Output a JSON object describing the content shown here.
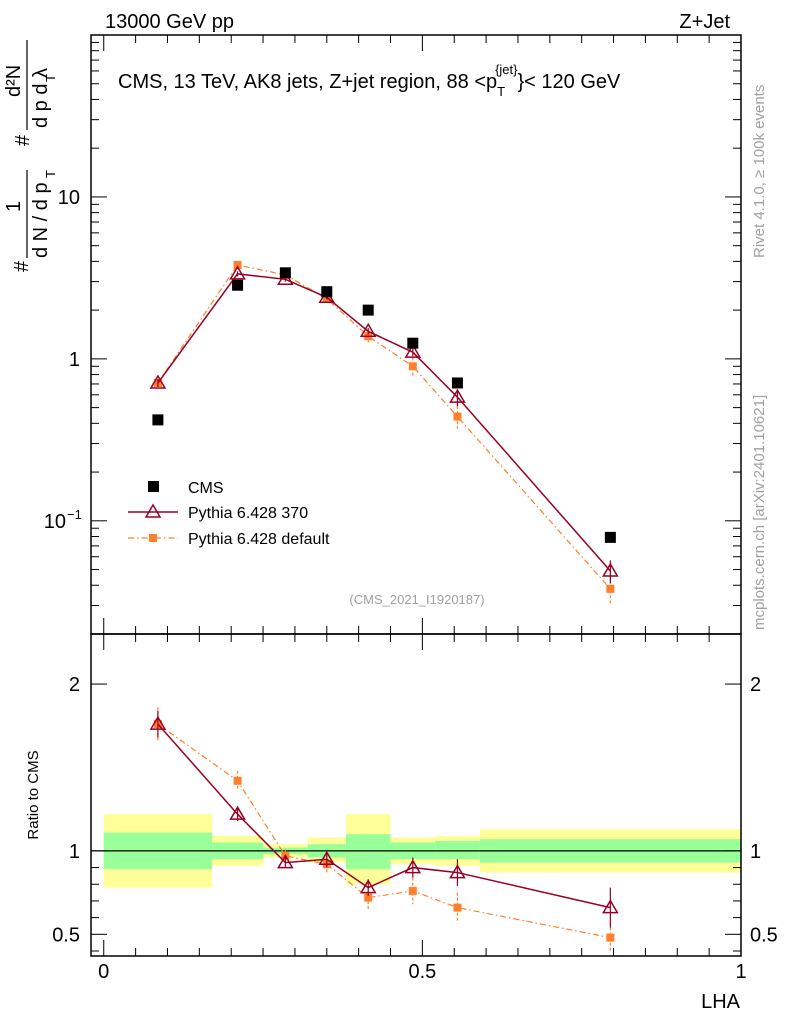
{
  "header": {
    "left": "13000 GeV pp",
    "right": "Z+Jet"
  },
  "plot_title": {
    "prefix": "CMS, 13 TeV, AK8 jets, Z+jet region, 88 <p",
    "sup": "{jet}",
    "sub": "T",
    "suffix": "}< 120 GeV"
  },
  "side_labels": {
    "rivet": "Rivet 4.1.0, ≥ 100k events",
    "mcplots": "mcplots.cern.ch [arXiv:2401.10621]"
  },
  "analysis_id": "(CMS_2021_I1920187)",
  "colors": {
    "cms": "#000000",
    "pythia370": "#990022",
    "pythia_default": "#ff7f2a",
    "band_inner": "#99ff99",
    "band_outer": "#ffff99"
  },
  "chart_data": [
    {
      "type": "scatter",
      "panel": "main",
      "ylabel": "1/dN/dp_T  d^2N/dp_T dλ",
      "yscale": "log",
      "ylim": [
        0.02,
        100
      ],
      "xlim": [
        -0.02,
        1.0
      ],
      "yticks": [
        {
          "value": 0.1,
          "base": "10",
          "exp": "−1"
        },
        {
          "value": 1,
          "label": "1"
        },
        {
          "value": 10,
          "label": "10"
        }
      ],
      "series": [
        {
          "name": "CMS",
          "style": "square",
          "x": [
            0.085,
            0.21,
            0.285,
            0.35,
            0.415,
            0.485,
            0.555,
            0.795
          ],
          "y": [
            0.42,
            2.85,
            3.4,
            2.6,
            2.0,
            1.25,
            0.71,
            0.079
          ]
        },
        {
          "name": "Pythia 6.428 370",
          "style": "triangle-line",
          "x": [
            0.085,
            0.21,
            0.285,
            0.35,
            0.415,
            0.485,
            0.555,
            0.795
          ],
          "y": [
            0.71,
            3.35,
            3.1,
            2.4,
            1.48,
            1.1,
            0.58,
            0.049
          ],
          "yerr": [
            0.04,
            0.12,
            0.1,
            0.08,
            0.07,
            0.06,
            0.07,
            0.008
          ]
        },
        {
          "name": "Pythia 6.428 default",
          "style": "square-dashdot",
          "x": [
            0.085,
            0.21,
            0.285,
            0.35,
            0.415,
            0.485,
            0.555,
            0.795
          ],
          "y": [
            0.71,
            3.8,
            3.3,
            2.35,
            1.38,
            0.9,
            0.44,
            0.038
          ],
          "yerr": [
            0.04,
            0.15,
            0.12,
            0.1,
            0.12,
            0.12,
            0.07,
            0.008
          ]
        }
      ]
    },
    {
      "type": "scatter",
      "panel": "ratio",
      "ylabel": "Ratio to CMS",
      "xlabel": "LHA",
      "ylim": [
        0.37,
        2.3
      ],
      "xlim": [
        -0.02,
        1.0
      ],
      "yticks": [
        0.5,
        1,
        2
      ],
      "xticks": [
        0,
        0.5,
        1
      ],
      "xtick_labels": [
        "0",
        "0.5",
        "1"
      ],
      "bands": [
        {
          "x0": 0.0,
          "x1": 0.17,
          "inner_low": 0.89,
          "inner_high": 1.11,
          "outer_low": 0.78,
          "outer_high": 1.22
        },
        {
          "x0": 0.17,
          "x1": 0.25,
          "inner_low": 0.95,
          "inner_high": 1.05,
          "outer_low": 0.91,
          "outer_high": 1.09
        },
        {
          "x0": 0.25,
          "x1": 0.32,
          "inner_low": 0.98,
          "inner_high": 1.02,
          "outer_low": 0.96,
          "outer_high": 1.04
        },
        {
          "x0": 0.32,
          "x1": 0.38,
          "inner_low": 0.96,
          "inner_high": 1.04,
          "outer_low": 0.93,
          "outer_high": 1.08
        },
        {
          "x0": 0.38,
          "x1": 0.45,
          "inner_low": 0.89,
          "inner_high": 1.1,
          "outer_low": 0.8,
          "outer_high": 1.22
        },
        {
          "x0": 0.45,
          "x1": 0.52,
          "inner_low": 0.95,
          "inner_high": 1.05,
          "outer_low": 0.92,
          "outer_high": 1.08
        },
        {
          "x0": 0.52,
          "x1": 0.59,
          "inner_low": 0.95,
          "inner_high": 1.06,
          "outer_low": 0.91,
          "outer_high": 1.09
        },
        {
          "x0": 0.59,
          "x1": 1.0,
          "inner_low": 0.93,
          "inner_high": 1.07,
          "outer_low": 0.87,
          "outer_high": 1.13
        }
      ],
      "series": [
        {
          "name": "Pythia 6.428 370",
          "style": "triangle-line",
          "x": [
            0.085,
            0.21,
            0.285,
            0.35,
            0.415,
            0.485,
            0.555,
            0.795
          ],
          "y": [
            1.76,
            1.22,
            0.93,
            0.95,
            0.78,
            0.9,
            0.87,
            0.66
          ],
          "yerr": [
            0.08,
            0.04,
            0.03,
            0.05,
            0.05,
            0.06,
            0.08,
            0.12
          ]
        },
        {
          "name": "Pythia 6.428 default",
          "style": "square-dashdot",
          "x": [
            0.085,
            0.21,
            0.285,
            0.35,
            0.415,
            0.485,
            0.555,
            0.795
          ],
          "y": [
            1.76,
            1.42,
            0.97,
            0.92,
            0.72,
            0.76,
            0.66,
            0.48
          ],
          "yerr": [
            0.1,
            0.06,
            0.04,
            0.06,
            0.07,
            0.08,
            0.09,
            0.09
          ]
        }
      ]
    }
  ]
}
